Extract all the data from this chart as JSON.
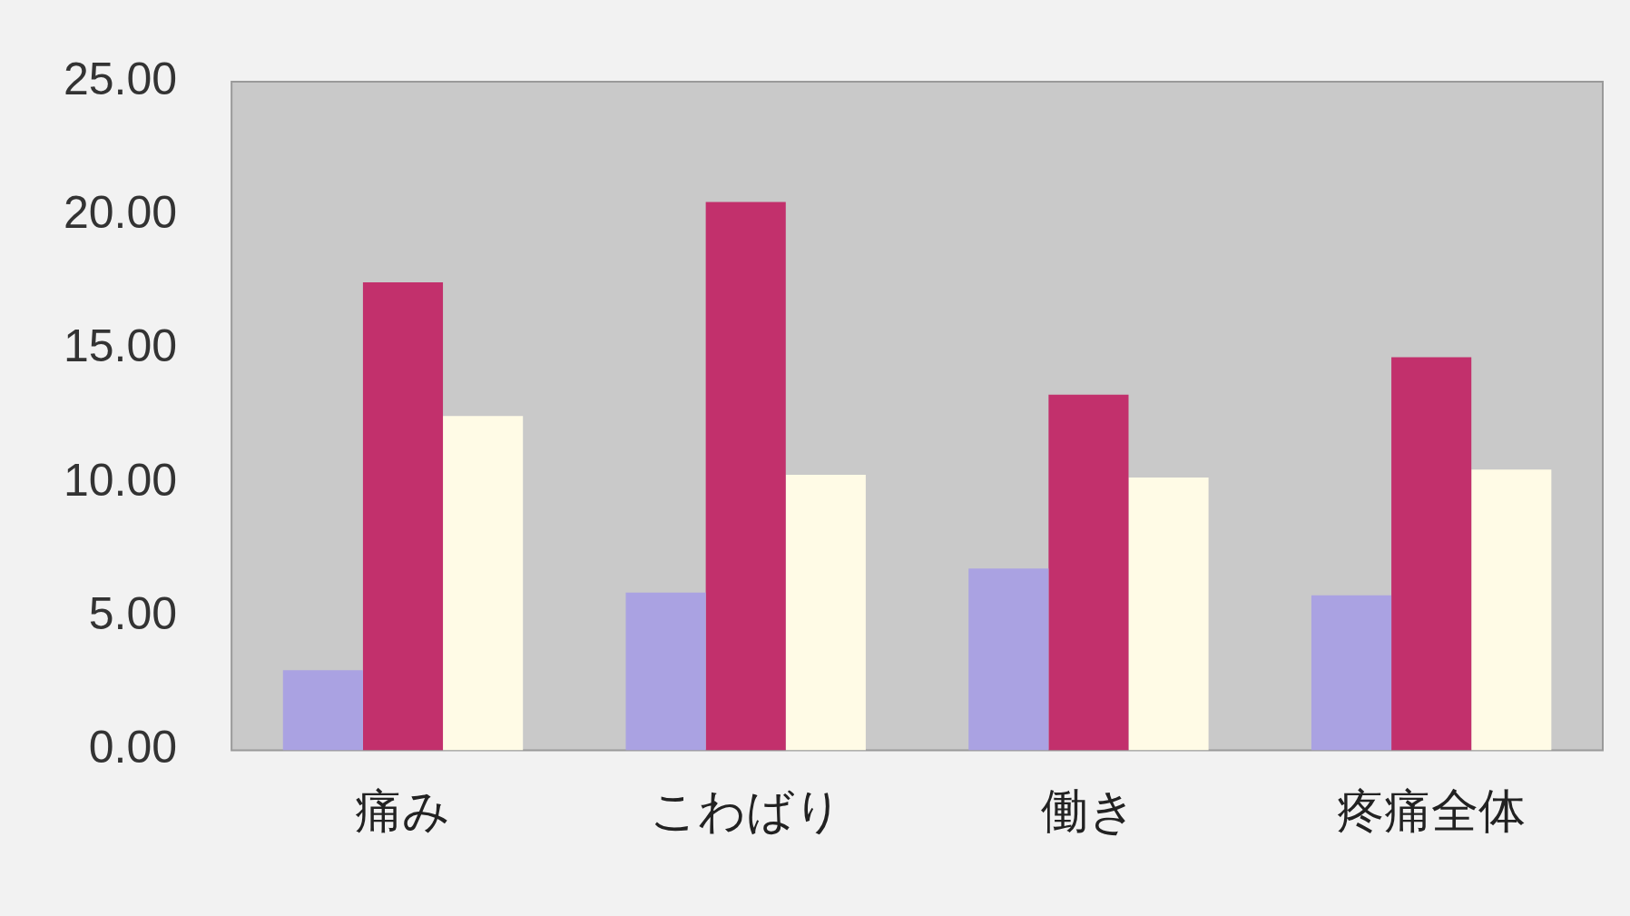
{
  "chart_data": {
    "type": "bar",
    "categories": [
      "痛み",
      "こわばり",
      "働き",
      "疼痛全体"
    ],
    "series": [
      {
        "color": "#aaa2e2",
        "values": [
          3.0,
          5.9,
          6.8,
          5.8
        ]
      },
      {
        "color": "#c2306c",
        "values": [
          17.5,
          20.5,
          13.3,
          14.7
        ]
      },
      {
        "color": "#fffbe6",
        "values": [
          12.5,
          10.3,
          10.2,
          10.5
        ]
      }
    ],
    "ylim": [
      0,
      25
    ],
    "yticks": [
      {
        "value": 0,
        "label": "0.00"
      },
      {
        "value": 5,
        "label": "5.00"
      },
      {
        "value": 10,
        "label": "10.00"
      },
      {
        "value": 15,
        "label": "15.00"
      },
      {
        "value": 20,
        "label": "20.00"
      },
      {
        "value": 25,
        "label": "25.00"
      }
    ],
    "grid": false,
    "legend": false
  }
}
